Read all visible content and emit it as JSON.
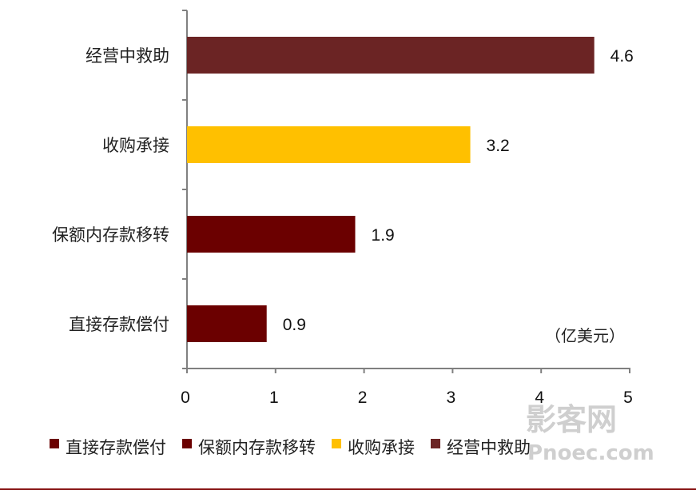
{
  "chart_data": {
    "type": "bar",
    "orientation": "horizontal",
    "categories": [
      "经营中救助",
      "收购承接",
      "保额内存款移转",
      "直接存款偿付"
    ],
    "values": [
      4.6,
      3.2,
      1.9,
      0.9
    ],
    "value_labels": [
      "4.6",
      "3.2",
      "1.9",
      "0.9"
    ],
    "bar_colors": [
      "#6b2424",
      "#ffc000",
      "#6b0000",
      "#6b0000"
    ],
    "x_ticks": [
      "0",
      "1",
      "2",
      "3",
      "4",
      "5"
    ],
    "xlim": [
      0,
      5
    ],
    "unit": "（亿美元）",
    "grid": false,
    "legend_position": "bottom",
    "legend": [
      {
        "name": "直接存款偿付",
        "color": "#6b0000"
      },
      {
        "name": "保额内存款移转",
        "color": "#6b0000"
      },
      {
        "name": "收购承接",
        "color": "#ffc000"
      },
      {
        "name": "经营中救助",
        "color": "#6b2424"
      }
    ]
  },
  "watermark": {
    "main": "影客网",
    "sub": "Pnoec.com"
  },
  "colors": {
    "rule": "#8b1a1a",
    "axis": "#808080"
  }
}
